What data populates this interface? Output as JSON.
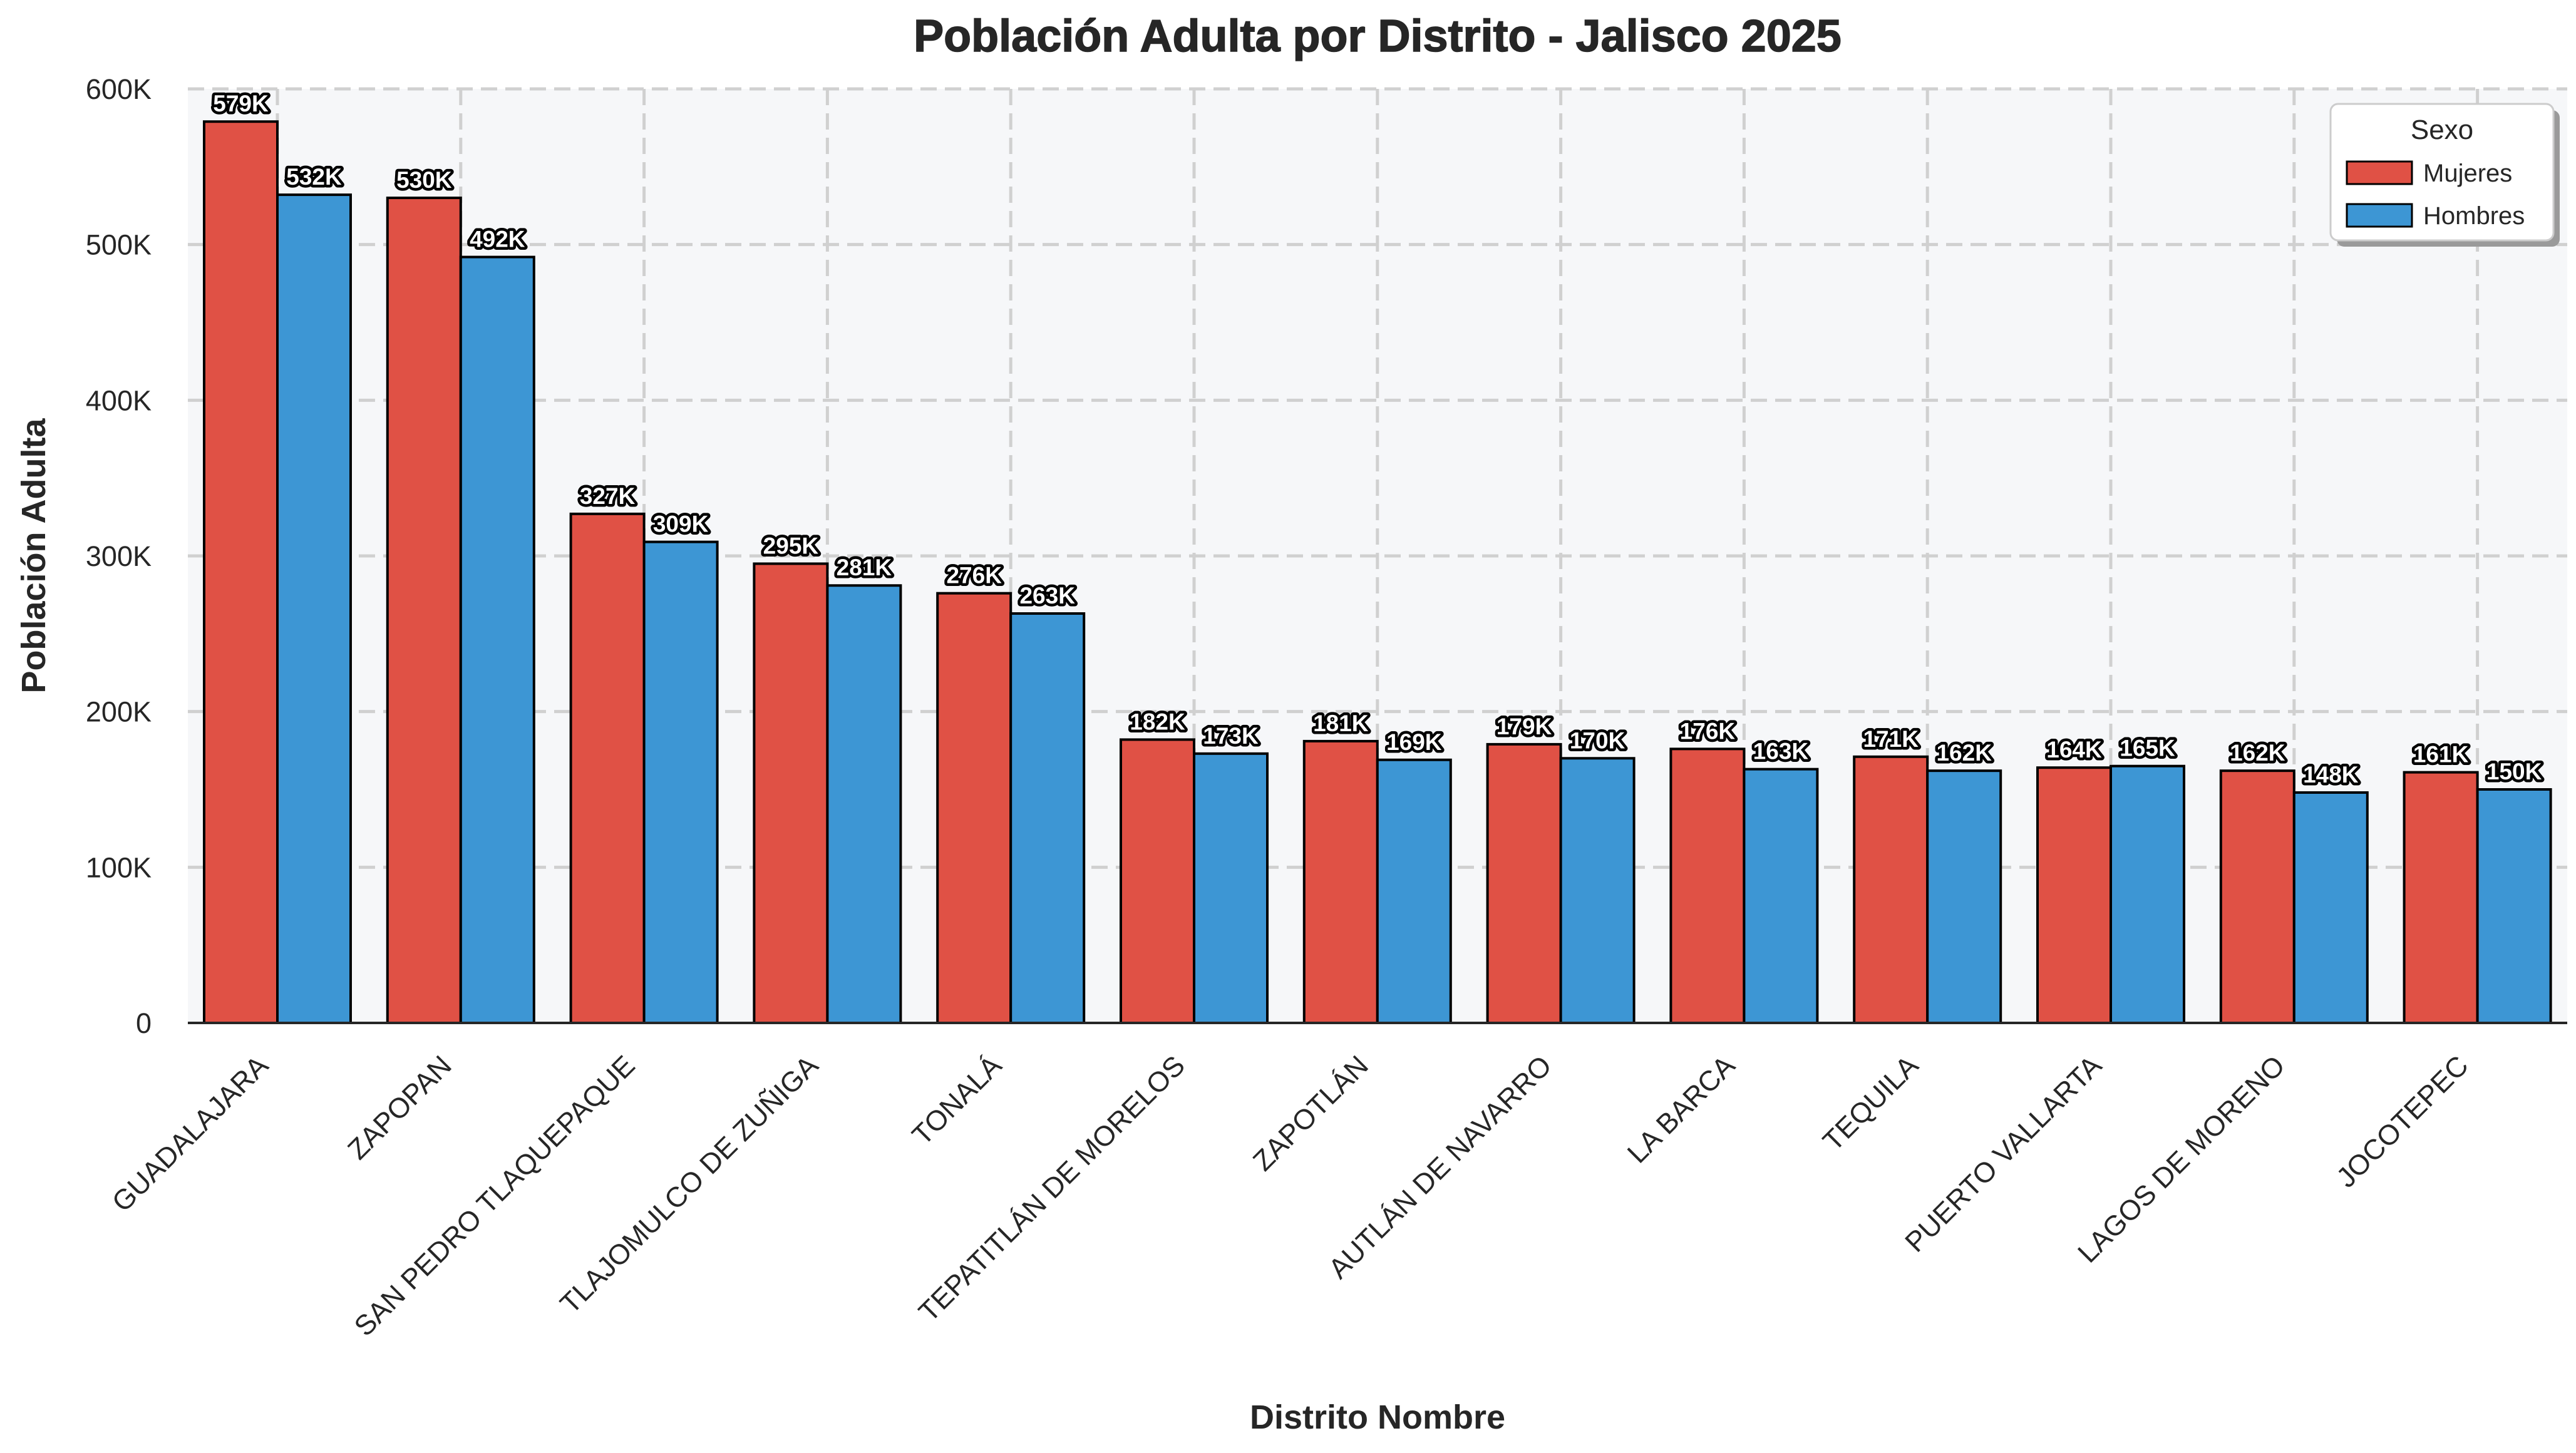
{
  "chart_data": {
    "type": "bar",
    "title": "Población Adulta por Distrito - Jalisco 2025",
    "xlabel": "Distrito Nombre",
    "ylabel": "Población Adulta",
    "ylim": [
      0,
      600000
    ],
    "yticks": [
      0,
      100000,
      200000,
      300000,
      400000,
      500000,
      600000
    ],
    "ytick_labels": [
      "0",
      "100K",
      "200K",
      "300K",
      "400K",
      "500K",
      "600K"
    ],
    "grid": true,
    "legend": {
      "title": "Sexo",
      "placement": "top-right"
    },
    "categories": [
      "GUADALAJARA",
      "ZAPOPAN",
      "SAN PEDRO TLAQUEPAQUE",
      "TLAJOMULCO DE ZUÑIGA",
      "TONALÁ",
      "TEPATITLÁN DE MORELOS",
      "ZAPOTLÁN",
      "AUTLÁN DE NAVARRO",
      "LA BARCA",
      "TEQUILA",
      "PUERTO VALLARTA",
      "LAGOS DE MORENO",
      "JOCOTEPEC"
    ],
    "series": [
      {
        "name": "Mujeres",
        "color": "#e05145",
        "values": [
          579000,
          530000,
          327000,
          295000,
          276000,
          182000,
          181000,
          179000,
          176000,
          171000,
          164000,
          162000,
          161000
        ],
        "labels": [
          "579K",
          "530K",
          "327K",
          "295K",
          "276K",
          "182K",
          "181K",
          "179K",
          "176K",
          "171K",
          "164K",
          "162K",
          "161K"
        ]
      },
      {
        "name": "Hombres",
        "color": "#3d96d4",
        "values": [
          532000,
          492000,
          309000,
          281000,
          263000,
          173000,
          169000,
          170000,
          163000,
          162000,
          165000,
          148000,
          150000
        ],
        "labels": [
          "532K",
          "492K",
          "309K",
          "281K",
          "263K",
          "173K",
          "169K",
          "170K",
          "163K",
          "162K",
          "165K",
          "148K",
          "150K"
        ]
      }
    ]
  }
}
